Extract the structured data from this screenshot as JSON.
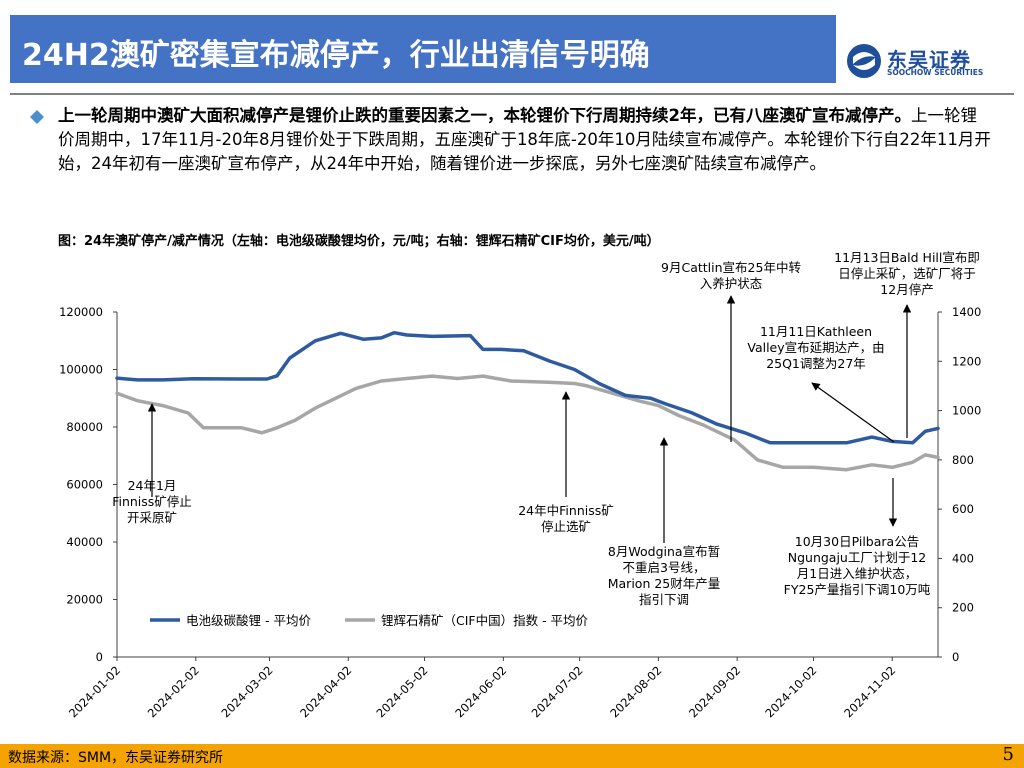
{
  "header": {
    "title": "24H2澳矿密集宣布减停产，行业出清信号明确",
    "logo_cn": "东吴证券",
    "logo_en": "SOOCHOW SECURITIES"
  },
  "body": {
    "bold_text": "上一轮周期中澳矿大面积减停产是锂价止跌的重要因素之一，本轮锂价下行周期持续2年，已有八座澳矿宣布减停产。",
    "normal_text": "上一轮锂价周期中，17年11月-20年8月锂价处于下跌周期，五座澳矿于18年底-20年10月陆续宣布减停产。本轮锂价下行自22年11月开始，24年初有一座澳矿宣布停产，从24年中开始，随着锂价进一步探底，另外七座澳矿陆续宣布减停产。"
  },
  "figure": {
    "title": "图：24年澳矿停产/减产情况（左轴：电池级碳酸锂均价，元/吨；右轴：锂辉石精矿CIF均价，美元/吨）"
  },
  "footer": {
    "source": "数据来源：SMM，东吴证券研究所",
    "page": "5"
  },
  "chart_data": {
    "type": "line",
    "y_left_ticks": [
      "0",
      "20000",
      "40000",
      "60000",
      "80000",
      "100000",
      "120000"
    ],
    "y_right_ticks": [
      "0",
      "200",
      "400",
      "600",
      "800",
      "1000",
      "1200",
      "1400"
    ],
    "y_left_range": [
      0,
      120000
    ],
    "y_right_range": [
      0,
      1400
    ],
    "x_tick_labels": [
      "2024-01-02",
      "2024-02-02",
      "2024-03-02",
      "2024-04-02",
      "2024-05-02",
      "2024-06-02",
      "2024-07-02",
      "2024-08-02",
      "2024-09-02",
      "2024-10-02",
      "2024-11-02"
    ],
    "x_range": [
      "2024-01-02",
      "2024-11-20"
    ],
    "grid": false,
    "legend_position": "bottom-left",
    "series": [
      {
        "name": "电池级碳酸锂 - 平均价",
        "axis": "left",
        "color": "#2e5aa0",
        "x": [
          "2024-01-02",
          "2024-01-10",
          "2024-01-20",
          "2024-02-01",
          "2024-02-20",
          "2024-03-01",
          "2024-03-05",
          "2024-03-10",
          "2024-03-20",
          "2024-03-30",
          "2024-04-08",
          "2024-04-15",
          "2024-04-20",
          "2024-04-25",
          "2024-05-05",
          "2024-05-20",
          "2024-05-25",
          "2024-06-01",
          "2024-06-10",
          "2024-06-20",
          "2024-06-30",
          "2024-07-10",
          "2024-07-20",
          "2024-07-30",
          "2024-08-05",
          "2024-08-15",
          "2024-08-25",
          "2024-09-05",
          "2024-09-15",
          "2024-09-25",
          "2024-10-05",
          "2024-10-15",
          "2024-10-25",
          "2024-11-02",
          "2024-11-10",
          "2024-11-15",
          "2024-11-20"
        ],
        "values": [
          97000,
          96400,
          96400,
          96800,
          96700,
          96700,
          97800,
          104000,
          110000,
          112600,
          110500,
          111000,
          112800,
          112000,
          111500,
          111800,
          107000,
          107000,
          106500,
          103000,
          100000,
          95000,
          91000,
          90000,
          88000,
          85000,
          81000,
          78000,
          74500,
          74500,
          74500,
          74500,
          76500,
          75000,
          74500,
          78500,
          79500
        ]
      },
      {
        "name": "锂辉石精矿（CIF中国）指数 - 平均价",
        "axis": "right",
        "color": "#a6a6a6",
        "x": [
          "2024-01-02",
          "2024-01-10",
          "2024-01-20",
          "2024-01-30",
          "2024-02-05",
          "2024-02-20",
          "2024-02-28",
          "2024-03-05",
          "2024-03-12",
          "2024-03-20",
          "2024-03-28",
          "2024-04-05",
          "2024-04-15",
          "2024-04-25",
          "2024-05-05",
          "2024-05-15",
          "2024-05-25",
          "2024-06-05",
          "2024-06-20",
          "2024-06-30",
          "2024-07-05",
          "2024-07-15",
          "2024-07-25",
          "2024-08-02",
          "2024-08-10",
          "2024-08-20",
          "2024-09-01",
          "2024-09-10",
          "2024-09-20",
          "2024-10-02",
          "2024-10-15",
          "2024-10-25",
          "2024-11-02",
          "2024-11-10",
          "2024-11-15",
          "2024-11-20"
        ],
        "values": [
          1070,
          1040,
          1020,
          990,
          930,
          930,
          910,
          930,
          960,
          1010,
          1050,
          1090,
          1120,
          1130,
          1140,
          1130,
          1140,
          1120,
          1115,
          1110,
          1100,
          1070,
          1040,
          1020,
          980,
          940,
          880,
          800,
          770,
          770,
          760,
          780,
          770,
          790,
          820,
          810
        ]
      }
    ],
    "annotations": [
      {
        "text": "24年1月\nFinniss矿停止\n开采原矿",
        "date": "2024-01-20"
      },
      {
        "text": "24年中Finniss矿\n停止选矿",
        "date": "2024-07-01"
      },
      {
        "text": "8月Wodgina宣布暂\n不重启3号线，\nMarion 25财年产量\n指引下调",
        "date": "2024-08-05"
      },
      {
        "text": "9月Cattlin宣布25年中转\n入养护状态",
        "date": "2024-08-30"
      },
      {
        "text": "11月11日Kathleen\nValley宣布延期达产，由\n25Q1调整为27年",
        "date": "2024-11-11"
      },
      {
        "text": "11月13日Bald Hill宣布即\n日停止采矿，选矿厂将于\n12月停产",
        "date": "2024-11-13"
      },
      {
        "text": "10月30日Pilbara公告\nNgungaju工厂计划于12\n月1日进入维护状态，\nFY25产量指引下调10万吨",
        "date": "2024-10-30"
      }
    ]
  }
}
